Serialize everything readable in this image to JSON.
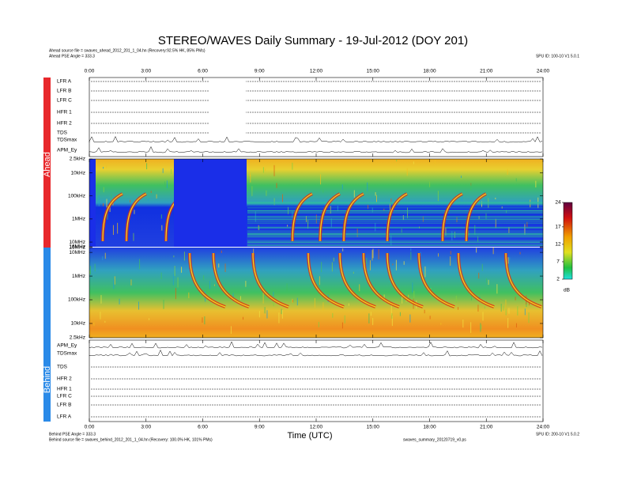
{
  "header": {
    "title": "STEREO/WAVES Daily Summary - 19-Jul-2012 (DOY 201)",
    "ahead_source": "Ahead source file = swaves_ahead_2012_201_1_04.hn (Recovery:92.5% HK, 85% PMs)",
    "ahead_pse": "Ahead PSE Angle = 333.3",
    "ahead_version": "SPU ID: 100-10 V1 5.0.1"
  },
  "footer": {
    "behind_pse": "Behind PSE Angle = 333.3",
    "behind_source": "Behind source file = swaves_behind_2012_201_1_04.hn (Recovery: 100.0% HK, 101% PMs)",
    "behind_version": "SPU ID: 200-10 V1 5.0.2",
    "file_info": "swaves_summary_20120719_v0.ps"
  },
  "chart_data": {
    "type": "spectrogram",
    "xlabel": "Time (UTC)",
    "xlim": [
      0,
      24
    ],
    "xticks": [
      {
        "value": 0,
        "label": "0:00"
      },
      {
        "value": 3,
        "label": "3:00"
      },
      {
        "value": 6,
        "label": "6:00"
      },
      {
        "value": 9,
        "label": "9:00"
      },
      {
        "value": 12,
        "label": "12:00"
      },
      {
        "value": 15,
        "label": "15:00"
      },
      {
        "value": 18,
        "label": "18:00"
      },
      {
        "value": 21,
        "label": "21:00"
      },
      {
        "value": 24,
        "label": "24:00"
      }
    ],
    "ylim": [
      2500,
      16000000
    ],
    "log_y": true,
    "yticks": [
      {
        "value": 2500,
        "label": "2.5kHz"
      },
      {
        "value": 10000,
        "label": "10kHz"
      },
      {
        "value": 100000,
        "label": "100kHz"
      },
      {
        "value": 1000000,
        "label": "1MHz"
      },
      {
        "value": 10000000,
        "label": "10MHz"
      },
      {
        "value": 16000000,
        "label": "16MHz"
      }
    ],
    "ahead_label": "Ahead",
    "behind_label": "Behind",
    "rows_ahead": [
      "LFR A",
      "LFR B",
      "LFR C",
      "HFR 1",
      "HFR 2",
      "TDS",
      "TDSmax",
      "APM_Ey"
    ],
    "rows_behind": [
      "APM_Ey",
      "TDSmax",
      "TDS",
      "HFR 2",
      "HFR 1",
      "LFR C",
      "LFR B",
      "LFR A"
    ],
    "colorbar": {
      "lim": [
        2,
        24
      ],
      "ticks": [
        2,
        7,
        12,
        17,
        24
      ],
      "label": "dB"
    }
  }
}
